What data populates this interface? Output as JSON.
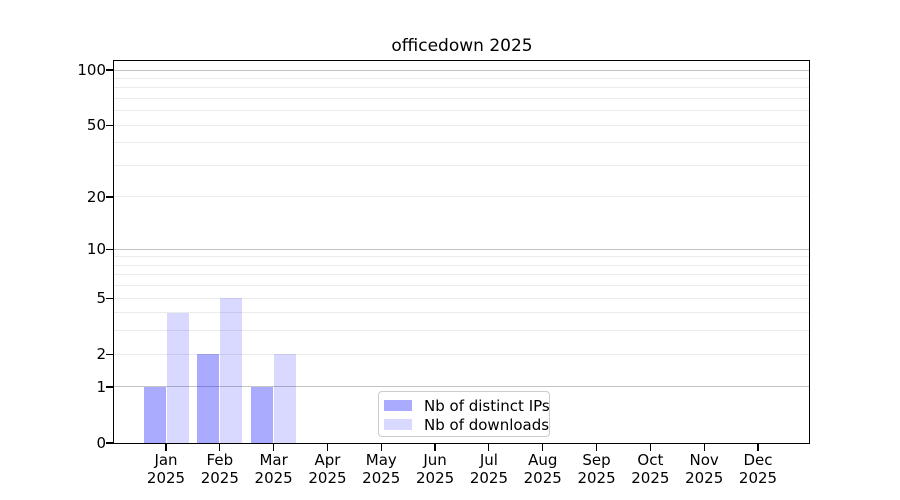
{
  "figure": {
    "background": "#ffffff"
  },
  "chart_data": {
    "type": "bar",
    "title": "officedown 2025",
    "categories": [
      "Jan",
      "Feb",
      "Mar",
      "Apr",
      "May",
      "Jun",
      "Jul",
      "Aug",
      "Sep",
      "Oct",
      "Nov",
      "Dec"
    ],
    "category_year": "2025",
    "series": [
      {
        "name": "Nb of distinct IPs",
        "color": "#aaaaff",
        "values": [
          1,
          2,
          1,
          0,
          0,
          0,
          0,
          0,
          0,
          0,
          0,
          0
        ]
      },
      {
        "name": "Nb of downloads",
        "color": "#d9d9ff",
        "values": [
          4,
          5,
          2,
          0,
          0,
          0,
          0,
          0,
          0,
          0,
          0,
          0
        ]
      }
    ],
    "xlabel": "",
    "ylabel": "",
    "yscale": "log10(1+y)",
    "ylim": [
      0,
      112
    ],
    "ytick_values": [
      0,
      1,
      2,
      5,
      10,
      20,
      50,
      100
    ],
    "major_grid_values": [
      1,
      10,
      100
    ],
    "minor_grid_values": [
      2,
      3,
      4,
      5,
      6,
      7,
      8,
      9,
      20,
      30,
      40,
      50,
      60,
      70,
      80,
      90
    ],
    "grid": true,
    "legend_position": "bottom-center",
    "colors": {
      "grid_major": "#c4c4c4",
      "grid_minor": "#ebebeb",
      "axis_border": "#000000",
      "text": "#000000",
      "legend_border": "#cccccc",
      "legend_background": "#ffffff"
    }
  }
}
